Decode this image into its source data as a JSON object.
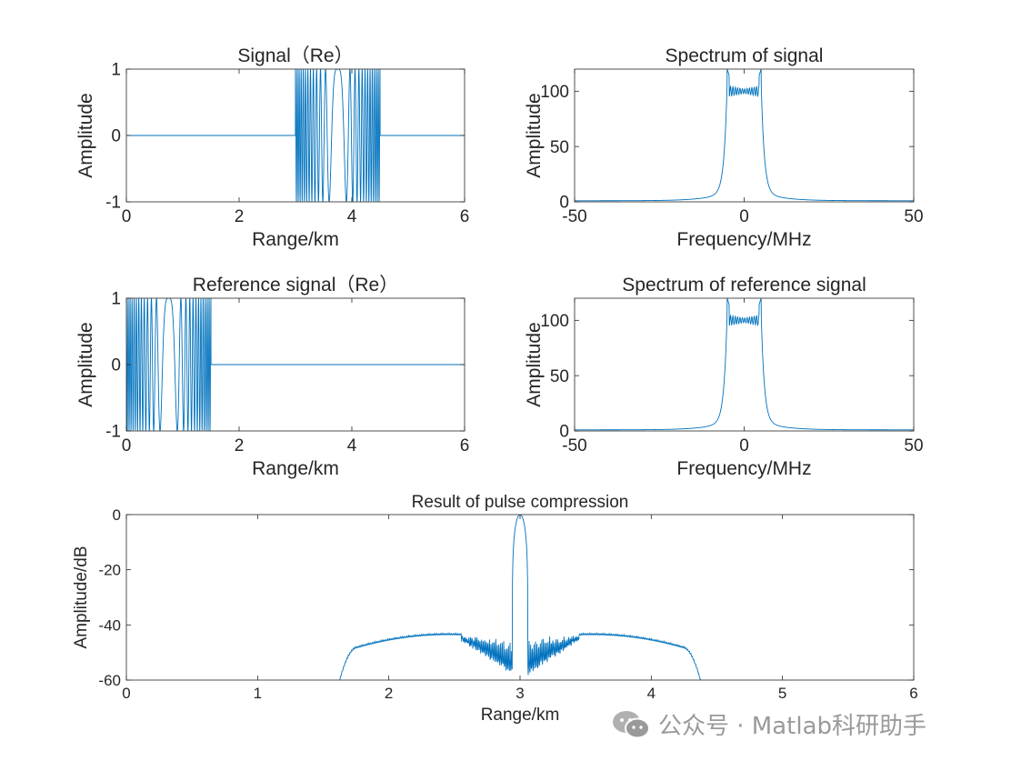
{
  "watermark": {
    "text": "公众号 · Matlab科研助手",
    "icon": "wechat-icon"
  },
  "colors": {
    "line": "#0072BD",
    "axis": "#262626",
    "background": "#ffffff"
  },
  "chart_data": [
    {
      "id": "signal",
      "type": "line",
      "title": "Signal（Re）",
      "xlabel": "Range/km",
      "ylabel": "Amplitude",
      "xlim": [
        0,
        6
      ],
      "ylim": [
        -1,
        1
      ],
      "xticks": [
        "0",
        "2",
        "4",
        "6"
      ],
      "xtick_values": [
        0,
        2,
        4,
        6
      ],
      "yticks": [
        "-1",
        "0",
        "1"
      ],
      "ytick_values": [
        -1,
        0,
        1
      ],
      "series": [
        {
          "kind": "chirp",
          "pulse_start": 3.0,
          "pulse_end": 4.5,
          "amplitude": 1,
          "zero_outside_pulse": true
        }
      ]
    },
    {
      "id": "spectrum_signal",
      "type": "line",
      "title": "Spectrum of signal",
      "xlabel": "Frequency/MHz",
      "ylabel": "Amplitude",
      "xlim": [
        -50,
        50
      ],
      "ylim": [
        0,
        120
      ],
      "xticks": [
        "-50",
        "0",
        "50"
      ],
      "xtick_values": [
        -50,
        0,
        50
      ],
      "yticks": [
        "0",
        "50",
        "100"
      ],
      "ytick_values": [
        0,
        50,
        100
      ],
      "series": [
        {
          "kind": "spectrum",
          "band_low": -5,
          "band_high": 5,
          "plateau": 100,
          "ripple": 5,
          "edge_peak": 120,
          "floor": 1
        }
      ]
    },
    {
      "id": "reference",
      "type": "line",
      "title": "Reference signal（Re）",
      "xlabel": "Range/km",
      "ylabel": "Amplitude",
      "xlim": [
        0,
        6
      ],
      "ylim": [
        -1,
        1
      ],
      "xticks": [
        "0",
        "2",
        "4",
        "6"
      ],
      "xtick_values": [
        0,
        2,
        4,
        6
      ],
      "yticks": [
        "-1",
        "0",
        "1"
      ],
      "ytick_values": [
        -1,
        0,
        1
      ],
      "series": [
        {
          "kind": "chirp",
          "pulse_start": 0.0,
          "pulse_end": 1.5,
          "amplitude": 1,
          "zero_outside_pulse": true
        }
      ]
    },
    {
      "id": "spectrum_reference",
      "type": "line",
      "title": "Spectrum of reference signal",
      "xlabel": "Frequency/MHz",
      "ylabel": "Amplitude",
      "xlim": [
        -50,
        50
      ],
      "ylim": [
        0,
        120
      ],
      "xticks": [
        "-50",
        "0",
        "50"
      ],
      "xtick_values": [
        -50,
        0,
        50
      ],
      "yticks": [
        "0",
        "50",
        "100"
      ],
      "ytick_values": [
        0,
        50,
        100
      ],
      "series": [
        {
          "kind": "spectrum",
          "band_low": -5,
          "band_high": 5,
          "plateau": 100,
          "ripple": 5,
          "edge_peak": 120,
          "floor": 1
        }
      ]
    },
    {
      "id": "compression",
      "type": "line",
      "title": "Result of pulse compression",
      "xlabel": "Range/km",
      "ylabel": "Amplitude/dB",
      "xlim": [
        0,
        6
      ],
      "ylim": [
        -60,
        0
      ],
      "xticks": [
        "0",
        "1",
        "2",
        "3",
        "4",
        "5",
        "6"
      ],
      "xtick_values": [
        0,
        1,
        2,
        3,
        4,
        5,
        6
      ],
      "yticks": [
        "-60",
        "-40",
        "-20",
        "0"
      ],
      "ytick_values": [
        -60,
        -40,
        -20,
        0
      ],
      "series": [
        {
          "kind": "compressed",
          "peak_range": 3.0,
          "peak_db": 0,
          "sidelobe_level_db": -43,
          "sidelobe_start": 1.5,
          "sidelobe_end": 4.5
        }
      ]
    }
  ]
}
